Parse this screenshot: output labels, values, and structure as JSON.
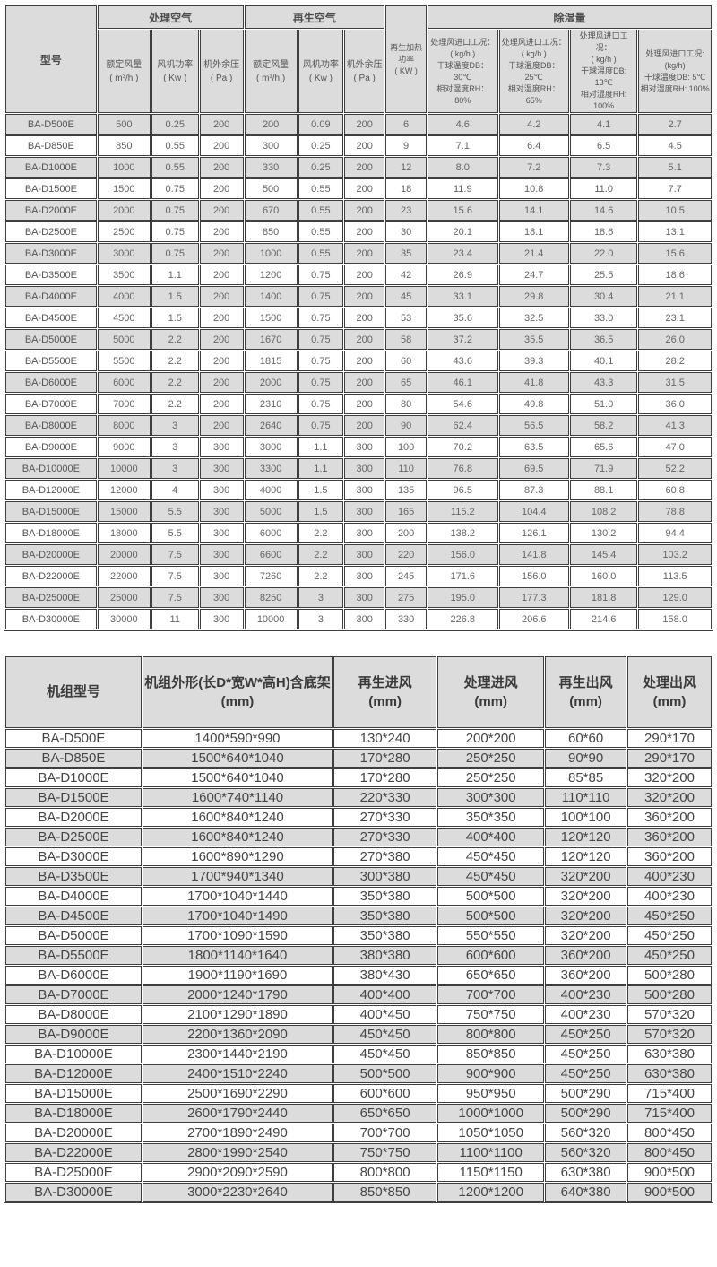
{
  "colors": {
    "header_bg": "#dcdcdc",
    "row_alt_bg": "#dcdcdc",
    "row_bg": "#ffffff",
    "border": "#3e3e3e",
    "text": "#545456"
  },
  "performance_table": {
    "header": {
      "model": "型号",
      "process_air_group": "处理空气",
      "regen_air_group": "再生空气",
      "regen_heating_power": [
        "再生加热",
        "功率",
        "( KW )"
      ],
      "dehumidification_group": "除湿量",
      "rated_airflow": [
        "额定风量",
        "( m³/h )"
      ],
      "fan_power": [
        "风机功率",
        "( Kw )"
      ],
      "external_pressure": [
        "机外余压",
        "( Pa )"
      ],
      "conditions": [
        [
          "处理风进口工况：",
          "( kg/h )",
          "干球温度DB：30℃",
          "相对湿度RH：80%"
        ],
        [
          "处理风进口工况：",
          "( kg/h )",
          "干球温度DB：25℃",
          "相对湿度RH：65%"
        ],
        [
          "处理风进口工况：",
          "( kg/h )",
          "干球温度DB: 13℃",
          "相对湿度RH: 100%"
        ],
        [
          "处理风进口工况:",
          "(kg/h)",
          "干球温度DB: 5℃",
          "相对湿度RH: 100%"
        ]
      ]
    },
    "rows": [
      [
        "BA-D500E",
        "500",
        "0.25",
        "200",
        "200",
        "0.09",
        "200",
        "6",
        "4.6",
        "4.2",
        "4.1",
        "2.7"
      ],
      [
        "BA-D850E",
        "850",
        "0.55",
        "200",
        "300",
        "0.25",
        "200",
        "9",
        "7.1",
        "6.4",
        "6.5",
        "4.5"
      ],
      [
        "BA-D1000E",
        "1000",
        "0.55",
        "200",
        "330",
        "0.25",
        "200",
        "12",
        "8.0",
        "7.2",
        "7.3",
        "5.1"
      ],
      [
        "BA-D1500E",
        "1500",
        "0.75",
        "200",
        "500",
        "0.55",
        "200",
        "18",
        "11.9",
        "10.8",
        "11.0",
        "7.7"
      ],
      [
        "BA-D2000E",
        "2000",
        "0.75",
        "200",
        "670",
        "0.55",
        "200",
        "23",
        "15.6",
        "14.1",
        "14.6",
        "10.5"
      ],
      [
        "BA-D2500E",
        "2500",
        "0.75",
        "200",
        "850",
        "0.55",
        "200",
        "30",
        "20.1",
        "18.1",
        "18.6",
        "13.1"
      ],
      [
        "BA-D3000E",
        "3000",
        "0.75",
        "200",
        "1000",
        "0.55",
        "200",
        "35",
        "23.4",
        "21.4",
        "22.0",
        "15.6"
      ],
      [
        "BA-D3500E",
        "3500",
        "1.1",
        "200",
        "1200",
        "0.75",
        "200",
        "42",
        "26.9",
        "24.7",
        "25.5",
        "18.6"
      ],
      [
        "BA-D4000E",
        "4000",
        "1.5",
        "200",
        "1400",
        "0.75",
        "200",
        "45",
        "33.1",
        "29.8",
        "30.4",
        "21.1"
      ],
      [
        "BA-D4500E",
        "4500",
        "1.5",
        "200",
        "1500",
        "0.75",
        "200",
        "53",
        "35.6",
        "32.5",
        "33.0",
        "23.1"
      ],
      [
        "BA-D5000E",
        "5000",
        "2.2",
        "200",
        "1670",
        "0.75",
        "200",
        "58",
        "37.2",
        "35.5",
        "36.5",
        "26.0"
      ],
      [
        "BA-D5500E",
        "5500",
        "2.2",
        "200",
        "1815",
        "0.75",
        "200",
        "60",
        "43.6",
        "39.3",
        "40.1",
        "28.2"
      ],
      [
        "BA-D6000E",
        "6000",
        "2.2",
        "200",
        "2000",
        "0.75",
        "200",
        "65",
        "46.1",
        "41.8",
        "43.3",
        "31.5"
      ],
      [
        "BA-D7000E",
        "7000",
        "2.2",
        "200",
        "2310",
        "0.75",
        "200",
        "80",
        "54.6",
        "49.8",
        "51.0",
        "36.0"
      ],
      [
        "BA-D8000E",
        "8000",
        "3",
        "200",
        "2640",
        "0.75",
        "200",
        "90",
        "62.4",
        "56.5",
        "58.2",
        "41.3"
      ],
      [
        "BA-D9000E",
        "9000",
        "3",
        "300",
        "3000",
        "1.1",
        "300",
        "100",
        "70.2",
        "63.5",
        "65.6",
        "47.0"
      ],
      [
        "BA-D10000E",
        "10000",
        "3",
        "300",
        "3300",
        "1.1",
        "300",
        "110",
        "76.8",
        "69.5",
        "71.9",
        "52.2"
      ],
      [
        "BA-D12000E",
        "12000",
        "4",
        "300",
        "4000",
        "1.5",
        "300",
        "135",
        "96.5",
        "87.3",
        "88.1",
        "60.8"
      ],
      [
        "BA-D15000E",
        "15000",
        "5.5",
        "300",
        "5000",
        "1.5",
        "300",
        "165",
        "115.2",
        "104.4",
        "108.2",
        "78.8"
      ],
      [
        "BA-D18000E",
        "18000",
        "5.5",
        "300",
        "6000",
        "2.2",
        "300",
        "200",
        "138.2",
        "126.1",
        "130.2",
        "94.4"
      ],
      [
        "BA-D20000E",
        "20000",
        "7.5",
        "300",
        "6600",
        "2.2",
        "300",
        "220",
        "156.0",
        "141.8",
        "145.4",
        "103.2"
      ],
      [
        "BA-D22000E",
        "22000",
        "7.5",
        "300",
        "7260",
        "2.2",
        "300",
        "245",
        "171.6",
        "156.0",
        "160.0",
        "113.5"
      ],
      [
        "BA-D25000E",
        "25000",
        "7.5",
        "300",
        "8250",
        "3",
        "300",
        "275",
        "195.0",
        "177.3",
        "181.8",
        "129.0"
      ],
      [
        "BA-D30000E",
        "30000",
        "11",
        "300",
        "10000",
        "3",
        "300",
        "330",
        "226.8",
        "206.6",
        "214.6",
        "158.0"
      ]
    ]
  },
  "dimension_table": {
    "header": {
      "unit_model": [
        "机组型号"
      ],
      "outline": [
        "机组外形(长D*宽W*高H)含底架",
        "(mm)"
      ],
      "regen_inlet": [
        "再生进风",
        "(mm)"
      ],
      "process_inlet": [
        "处理进风",
        "(mm)"
      ],
      "regen_outlet": [
        "再生出风",
        "(mm)"
      ],
      "process_outlet": [
        "处理出风",
        "(mm)"
      ]
    },
    "rows": [
      [
        "BA-D500E",
        "1400*590*990",
        "130*240",
        "200*200",
        "60*60",
        "290*170"
      ],
      [
        "BA-D850E",
        "1500*640*1040",
        "170*280",
        "250*250",
        "90*90",
        "290*170"
      ],
      [
        "BA-D1000E",
        "1500*640*1040",
        "170*280",
        "250*250",
        "85*85",
        "320*200"
      ],
      [
        "BA-D1500E",
        "1600*740*1140",
        "220*330",
        "300*300",
        "110*110",
        "320*200"
      ],
      [
        "BA-D2000E",
        "1600*840*1240",
        "270*330",
        "350*350",
        "100*100",
        "360*200"
      ],
      [
        "BA-D2500E",
        "1600*840*1240",
        "270*330",
        "400*400",
        "120*120",
        "360*200"
      ],
      [
        "BA-D3000E",
        "1600*890*1290",
        "270*380",
        "450*450",
        "120*120",
        "360*200"
      ],
      [
        "BA-D3500E",
        "1700*940*1340",
        "300*380",
        "450*450",
        "320*200",
        "400*230"
      ],
      [
        "BA-D4000E",
        "1700*1040*1440",
        "350*380",
        "500*500",
        "320*200",
        "400*230"
      ],
      [
        "BA-D4500E",
        "1700*1040*1490",
        "350*380",
        "500*500",
        "320*200",
        "450*250"
      ],
      [
        "BA-D5000E",
        "1700*1090*1590",
        "350*380",
        "550*550",
        "320*200",
        "450*250"
      ],
      [
        "BA-D5500E",
        "1800*1140*1640",
        "380*380",
        "600*600",
        "360*200",
        "450*250"
      ],
      [
        "BA-D6000E",
        "1900*1190*1690",
        "380*430",
        "650*650",
        "360*200",
        "500*280"
      ],
      [
        "BA-D7000E",
        "2000*1240*1790",
        "400*400",
        "700*700",
        "400*230",
        "500*280"
      ],
      [
        "BA-D8000E",
        "2100*1290*1890",
        "400*450",
        "750*750",
        "400*230",
        "570*320"
      ],
      [
        "BA-D9000E",
        "2200*1360*2090",
        "450*450",
        "800*800",
        "450*250",
        "570*320"
      ],
      [
        "BA-D10000E",
        "2300*1440*2190",
        "450*450",
        "850*850",
        "450*250",
        "630*380"
      ],
      [
        "BA-D12000E",
        "2400*1510*2240",
        "500*500",
        "900*900",
        "450*250",
        "630*380"
      ],
      [
        "BA-D15000E",
        "2500*1690*2290",
        "600*600",
        "950*950",
        "500*290",
        "715*400"
      ],
      [
        "BA-D18000E",
        "2600*1790*2440",
        "650*650",
        "1000*1000",
        "500*290",
        "715*400"
      ],
      [
        "BA-D20000E",
        "2700*1890*2490",
        "700*700",
        "1050*1050",
        "560*320",
        "800*450"
      ],
      [
        "BA-D22000E",
        "2800*1990*2540",
        "750*750",
        "1100*1100",
        "560*320",
        "800*450"
      ],
      [
        "BA-D25000E",
        "2900*2090*2590",
        "800*800",
        "1150*1150",
        "630*380",
        "900*500"
      ],
      [
        "BA-D30000E",
        "3000*2230*2640",
        "850*850",
        "1200*1200",
        "640*380",
        "900*500"
      ]
    ]
  }
}
